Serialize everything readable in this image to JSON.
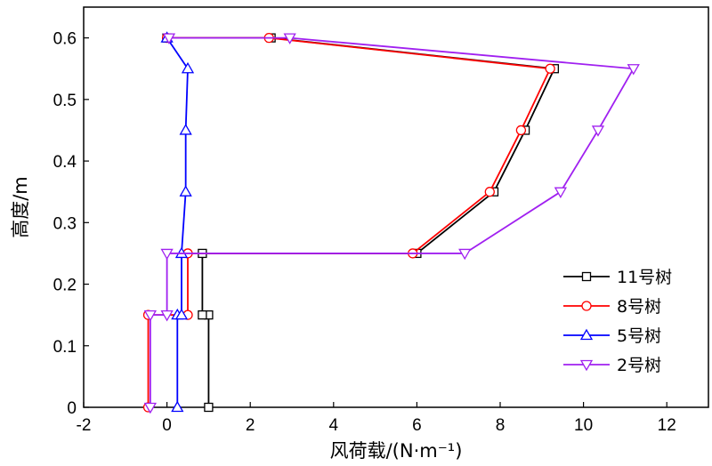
{
  "chart_data": {
    "type": "line",
    "xlabel": "风荷载/(N·m⁻¹)",
    "ylabel": "高度/m",
    "xlim": [
      -2,
      13
    ],
    "ylim": [
      0,
      0.65
    ],
    "xticks": [
      -2,
      0,
      2,
      4,
      6,
      8,
      10,
      12
    ],
    "xtick_labels": [
      "-2",
      "0",
      "2",
      "4",
      "6",
      "8",
      "10",
      "12"
    ],
    "yticks": [
      0,
      0.1,
      0.2,
      0.3,
      0.4,
      0.5,
      0.6
    ],
    "ytick_labels": [
      "0",
      "0.1",
      "0.2",
      "0.3",
      "0.4",
      "0.5",
      "0.6"
    ],
    "grid": false,
    "legend_position": "bottom-right",
    "series": [
      {
        "name": "11号树",
        "color": "#000000",
        "marker": "square",
        "points": [
          [
            1.0,
            0
          ],
          [
            1.0,
            0.15
          ],
          [
            0.85,
            0.15
          ],
          [
            0.85,
            0.25
          ],
          [
            6.0,
            0.25
          ],
          [
            7.85,
            0.35
          ],
          [
            8.6,
            0.45
          ],
          [
            9.3,
            0.55
          ],
          [
            2.5,
            0.6
          ],
          [
            0.0,
            0.6
          ]
        ]
      },
      {
        "name": "8号树",
        "color": "#ff0000",
        "marker": "circle",
        "points": [
          [
            -0.45,
            0
          ],
          [
            -0.45,
            0.15
          ],
          [
            0.5,
            0.15
          ],
          [
            0.5,
            0.25
          ],
          [
            5.9,
            0.25
          ],
          [
            7.75,
            0.35
          ],
          [
            8.5,
            0.45
          ],
          [
            9.2,
            0.55
          ],
          [
            2.45,
            0.6
          ],
          [
            0.0,
            0.6
          ]
        ]
      },
      {
        "name": "5号树",
        "color": "#0000ff",
        "marker": "triangle-up",
        "points": [
          [
            0.25,
            0
          ],
          [
            0.25,
            0.15
          ],
          [
            0.35,
            0.15
          ],
          [
            0.35,
            0.25
          ],
          [
            0.45,
            0.35
          ],
          [
            0.45,
            0.45
          ],
          [
            0.5,
            0.55
          ],
          [
            0.0,
            0.6
          ]
        ]
      },
      {
        "name": "2号树",
        "color": "#a020f0",
        "marker": "triangle-down",
        "points": [
          [
            -0.4,
            0
          ],
          [
            -0.4,
            0.15
          ],
          [
            0.0,
            0.15
          ],
          [
            0.0,
            0.25
          ],
          [
            7.15,
            0.25
          ],
          [
            9.45,
            0.35
          ],
          [
            10.35,
            0.45
          ],
          [
            11.2,
            0.55
          ],
          [
            2.95,
            0.6
          ],
          [
            0.05,
            0.6
          ]
        ]
      }
    ]
  }
}
